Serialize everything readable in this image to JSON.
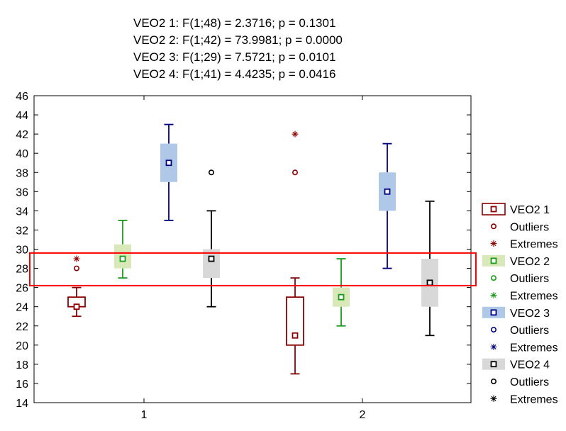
{
  "chart_data": {
    "type": "box",
    "stats_lines": [
      "VEO2 1:   F(1;48) = 2.3716; p = 0.1301",
      "VEO2 2:   F(1;42) = 73.9981; p = 0.0000",
      "VEO2 3:   F(1;29) = 7.5721; p = 0.0101",
      "VEO2 4:   F(1;41) = 4.4235; p = 0.0416"
    ],
    "categories": [
      "1",
      "2"
    ],
    "y_ticks": [
      14,
      16,
      18,
      20,
      22,
      24,
      26,
      28,
      30,
      32,
      34,
      36,
      38,
      40,
      42,
      44,
      46
    ],
    "ylim": [
      14,
      46
    ],
    "grid": false,
    "legend_position": "right",
    "series": [
      {
        "name": "VEO2 1",
        "color": "#8b0000",
        "box_fill": "#ffffff",
        "boxes": [
          {
            "category": "1",
            "median": 24,
            "q1": 24,
            "q3": 25,
            "whisker_low": 23,
            "whisker_high": 26,
            "outliers": [
              28
            ],
            "extremes": [
              29
            ]
          },
          {
            "category": "2",
            "median": 21,
            "q1": 20,
            "q3": 25,
            "whisker_low": 17,
            "whisker_high": 27,
            "outliers": [
              38
            ],
            "extremes": [
              42
            ]
          }
        ]
      },
      {
        "name": "VEO2 2",
        "color": "#1a9a1a",
        "box_fill": "#d8e8b8",
        "boxes": [
          {
            "category": "1",
            "median": 29,
            "q1": 28,
            "q3": 30.5,
            "whisker_low": 27,
            "whisker_high": 33,
            "outliers": [],
            "extremes": []
          },
          {
            "category": "2",
            "median": 25,
            "q1": 24,
            "q3": 26,
            "whisker_low": 22,
            "whisker_high": 29,
            "outliers": [],
            "extremes": []
          }
        ]
      },
      {
        "name": "VEO2 3",
        "color": "#000080",
        "box_fill": "#b0c8e8",
        "boxes": [
          {
            "category": "1",
            "median": 39,
            "q1": 37,
            "q3": 41,
            "whisker_low": 33,
            "whisker_high": 43,
            "outliers": [],
            "extremes": []
          },
          {
            "category": "2",
            "median": 36,
            "q1": 34,
            "q3": 38,
            "whisker_low": 28,
            "whisker_high": 41,
            "outliers": [],
            "extremes": []
          }
        ]
      },
      {
        "name": "VEO2 4",
        "color": "#000000",
        "box_fill": "#d8d8d8",
        "boxes": [
          {
            "category": "1",
            "median": 29,
            "q1": 27,
            "q3": 30,
            "whisker_low": 24,
            "whisker_high": 34,
            "outliers": [
              38
            ],
            "extremes": []
          },
          {
            "category": "2",
            "median": 26.5,
            "q1": 24,
            "q3": 29,
            "whisker_low": 21,
            "whisker_high": 35,
            "outliers": [],
            "extremes": []
          }
        ]
      }
    ],
    "legend": [
      {
        "label": "VEO2 1",
        "kind": "box",
        "series": 0
      },
      {
        "label": "Outliers",
        "kind": "outlier",
        "series": 0
      },
      {
        "label": "Extremes",
        "kind": "extreme",
        "series": 0
      },
      {
        "label": "VEO2 2",
        "kind": "box",
        "series": 1
      },
      {
        "label": "Outliers",
        "kind": "outlier",
        "series": 1
      },
      {
        "label": "Extremes",
        "kind": "extreme",
        "series": 1
      },
      {
        "label": "VEO2 3",
        "kind": "box",
        "series": 2
      },
      {
        "label": "Outliers",
        "kind": "outlier",
        "series": 2
      },
      {
        "label": "Extremes",
        "kind": "extreme",
        "series": 2
      },
      {
        "label": "VEO2 4",
        "kind": "box",
        "series": 3
      },
      {
        "label": "Outliers",
        "kind": "outlier",
        "series": 3
      },
      {
        "label": "Extremes",
        "kind": "extreme",
        "series": 3
      }
    ],
    "highlight": {
      "y_range": [
        26.2,
        29.6
      ],
      "color": "#ff0000"
    }
  }
}
